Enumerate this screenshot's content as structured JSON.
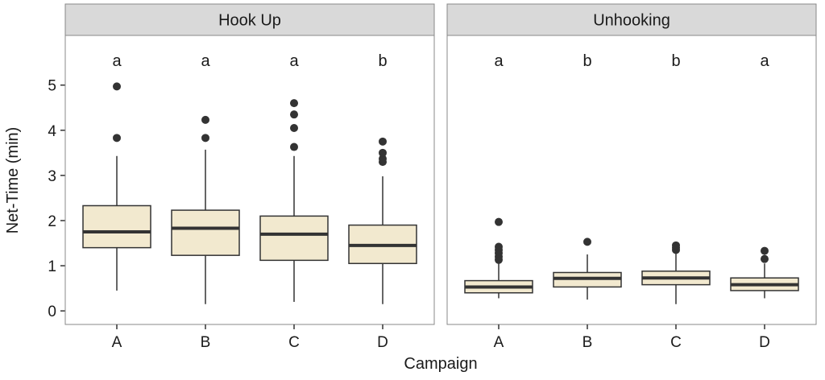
{
  "chart_data": {
    "type": "boxplot",
    "xlabel": "Campaign",
    "ylabel": "Net-Time (min)",
    "ylim": [
      -0.3,
      6.1
    ],
    "yticks": [
      0,
      1,
      2,
      3,
      4,
      5
    ],
    "categories": [
      "A",
      "B",
      "C",
      "D"
    ],
    "grid": false,
    "colors": {
      "box_fill": "#f2e9cf",
      "box_stroke": "#333333",
      "strip_fill": "#d9d9d9",
      "panel_border": "#888888",
      "outlier": "#333333"
    },
    "panels": [
      {
        "title": "Hook Up",
        "boxes": [
          {
            "category": "A",
            "whisker_low": 0.45,
            "q1": 1.4,
            "median": 1.75,
            "q3": 2.33,
            "whisker_high": 3.43,
            "outliers": [
              3.83,
              4.97
            ],
            "letter": "a"
          },
          {
            "category": "B",
            "whisker_low": 0.15,
            "q1": 1.23,
            "median": 1.83,
            "q3": 2.23,
            "whisker_high": 3.57,
            "outliers": [
              3.83,
              4.23
            ],
            "letter": "a"
          },
          {
            "category": "C",
            "whisker_low": 0.2,
            "q1": 1.12,
            "median": 1.7,
            "q3": 2.1,
            "whisker_high": 3.43,
            "outliers": [
              3.63,
              4.05,
              4.35,
              4.6
            ],
            "letter": "a"
          },
          {
            "category": "D",
            "whisker_low": 0.15,
            "q1": 1.05,
            "median": 1.45,
            "q3": 1.9,
            "whisker_high": 2.98,
            "outliers": [
              3.3,
              3.37,
              3.5,
              3.75
            ],
            "letter": "b"
          }
        ]
      },
      {
        "title": "Unhooking",
        "boxes": [
          {
            "category": "A",
            "whisker_low": 0.28,
            "q1": 0.4,
            "median": 0.53,
            "q3": 0.67,
            "whisker_high": 1.05,
            "outliers": [
              1.13,
              1.2,
              1.28,
              1.35,
              1.42,
              1.97
            ],
            "letter": "a"
          },
          {
            "category": "B",
            "whisker_low": 0.25,
            "q1": 0.53,
            "median": 0.72,
            "q3": 0.85,
            "whisker_high": 1.25,
            "outliers": [
              1.53
            ],
            "letter": "b"
          },
          {
            "category": "C",
            "whisker_low": 0.15,
            "q1": 0.58,
            "median": 0.73,
            "q3": 0.88,
            "whisker_high": 1.3,
            "outliers": [
              1.35,
              1.4,
              1.45
            ],
            "letter": "b"
          },
          {
            "category": "D",
            "whisker_low": 0.28,
            "q1": 0.45,
            "median": 0.58,
            "q3": 0.73,
            "whisker_high": 1.05,
            "outliers": [
              1.15,
              1.33
            ],
            "letter": "a"
          }
        ]
      }
    ]
  }
}
